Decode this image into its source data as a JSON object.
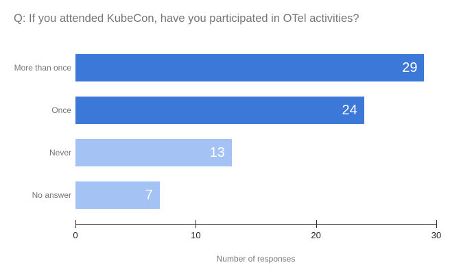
{
  "chart_data": {
    "type": "bar",
    "orientation": "horizontal",
    "title": "Q: If you attended KubeCon, have you participated in OTel activities?",
    "categories": [
      "More than once",
      "Once",
      "Never",
      "No answer"
    ],
    "values": [
      29,
      24,
      13,
      7
    ],
    "bar_colors": [
      "#3c78d8",
      "#3c78d8",
      "#a4c2f4",
      "#a4c2f4"
    ],
    "value_label_color": "#ffffff",
    "xlabel": "Number of responses",
    "ylabel": "",
    "xlim": [
      0,
      30
    ],
    "xticks": [
      0,
      10,
      20,
      30
    ],
    "grid": false,
    "legend": "none",
    "colors": {
      "title_text": "#757575",
      "category_text": "#757575",
      "tick_text": "#212121",
      "axis_line": "#333333",
      "background": "#ffffff"
    }
  }
}
